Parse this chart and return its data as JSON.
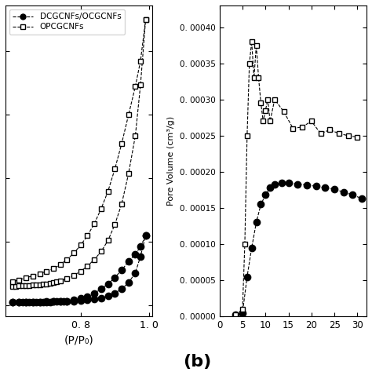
{
  "left_plot": {
    "xlabel": "(P/P₀)",
    "xlim": [
      0.58,
      1.01
    ],
    "xticks": [
      0.8,
      1.0
    ],
    "xtick_labels": [
      "0. 8",
      "1. 0"
    ],
    "legend": [
      "DCGCNFs/OCGCNFs",
      "OPCGCNFs"
    ],
    "filled_circle_adsorption": [
      0.6,
      0.62,
      0.63,
      0.64,
      0.65,
      0.66,
      0.67,
      0.68,
      0.69,
      0.7,
      0.71,
      0.72,
      0.73,
      0.74,
      0.75,
      0.76,
      0.78,
      0.8,
      0.82,
      0.84,
      0.86,
      0.88,
      0.9,
      0.92,
      0.94,
      0.96,
      0.975,
      0.99
    ],
    "filled_circle_ads_y": [
      10,
      10,
      10,
      10,
      10,
      11,
      11,
      11,
      11,
      11,
      11,
      12,
      12,
      12,
      12,
      13,
      14,
      15,
      17,
      20,
      24,
      30,
      39,
      52,
      72,
      103,
      155,
      220
    ],
    "filled_circle_desorption": [
      0.99,
      0.975,
      0.96,
      0.94,
      0.92,
      0.9,
      0.88,
      0.86,
      0.84,
      0.82,
      0.8,
      0.78,
      0.76,
      0.74,
      0.72,
      0.7,
      0.68,
      0.66,
      0.64,
      0.62,
      0.6
    ],
    "filled_circle_des_y": [
      220,
      185,
      162,
      138,
      112,
      88,
      68,
      52,
      39,
      29,
      22,
      17,
      14,
      13,
      12,
      12,
      11,
      11,
      11,
      10,
      10
    ],
    "open_square_adsorption": [
      0.6,
      0.61,
      0.62,
      0.63,
      0.64,
      0.65,
      0.66,
      0.67,
      0.68,
      0.69,
      0.7,
      0.71,
      0.72,
      0.73,
      0.74,
      0.76,
      0.78,
      0.8,
      0.82,
      0.84,
      0.86,
      0.88,
      0.9,
      0.92,
      0.94,
      0.96,
      0.975,
      0.99
    ],
    "open_square_ads_y": [
      60,
      61,
      62,
      62,
      63,
      63,
      64,
      65,
      66,
      67,
      68,
      70,
      72,
      75,
      78,
      85,
      95,
      108,
      124,
      145,
      170,
      205,
      255,
      320,
      415,
      535,
      695,
      900
    ],
    "open_square_desorption": [
      0.99,
      0.975,
      0.96,
      0.94,
      0.92,
      0.9,
      0.88,
      0.86,
      0.84,
      0.82,
      0.8,
      0.78,
      0.76,
      0.74,
      0.72,
      0.7,
      0.68,
      0.66,
      0.64,
      0.62,
      0.6
    ],
    "open_square_des_y": [
      900,
      770,
      690,
      600,
      510,
      430,
      360,
      305,
      258,
      220,
      190,
      165,
      145,
      128,
      116,
      108,
      100,
      93,
      88,
      80,
      76
    ]
  },
  "right_plot": {
    "ylabel": "Pore Volume (cm³/g)",
    "xlim": [
      1,
      32
    ],
    "ylim": [
      0,
      0.00043
    ],
    "yticks": [
      0.0,
      5e-05,
      0.0001,
      0.00015,
      0.0002,
      0.00025,
      0.0003,
      0.00035,
      0.0004
    ],
    "ytick_labels": [
      "0. 00000",
      "0. 00005",
      "0. 00010",
      "0. 00015",
      "0. 00020",
      "0. 00025",
      "0. 00030",
      "0. 00035",
      "0. 00040"
    ],
    "xticks": [
      0,
      5,
      10,
      15,
      20,
      25,
      30
    ],
    "label_b": "(b)",
    "filled_x": [
      3.5,
      5.0,
      6.0,
      7.0,
      8.0,
      9.0,
      10.0,
      11.0,
      12.0,
      13.5,
      15.0,
      17.0,
      19.0,
      21.0,
      23.0,
      25.0,
      27.0,
      29.0,
      31.0
    ],
    "filled_y": [
      2e-06,
      5e-06,
      5.5e-05,
      9.5e-05,
      0.00013,
      0.000155,
      0.000168,
      0.000178,
      0.000183,
      0.000185,
      0.000185,
      0.000183,
      0.000182,
      0.00018,
      0.000178,
      0.000176,
      0.000172,
      0.000168,
      0.000163
    ],
    "open_x": [
      3.5,
      5.0,
      5.5,
      6.0,
      6.5,
      7.0,
      7.5,
      8.0,
      8.5,
      9.0,
      9.5,
      10.0,
      10.5,
      11.0,
      12.0,
      14.0,
      16.0,
      18.0,
      20.0,
      22.0,
      24.0,
      26.0,
      28.0,
      30.0
    ],
    "open_y": [
      2e-06,
      1e-05,
      0.0001,
      0.00025,
      0.00035,
      0.00038,
      0.00033,
      0.000375,
      0.00033,
      0.000295,
      0.00027,
      0.000285,
      0.0003,
      0.00027,
      0.0003,
      0.000283,
      0.00026,
      0.000262,
      0.00027,
      0.000253,
      0.000258,
      0.000253,
      0.00025,
      0.000248
    ]
  }
}
